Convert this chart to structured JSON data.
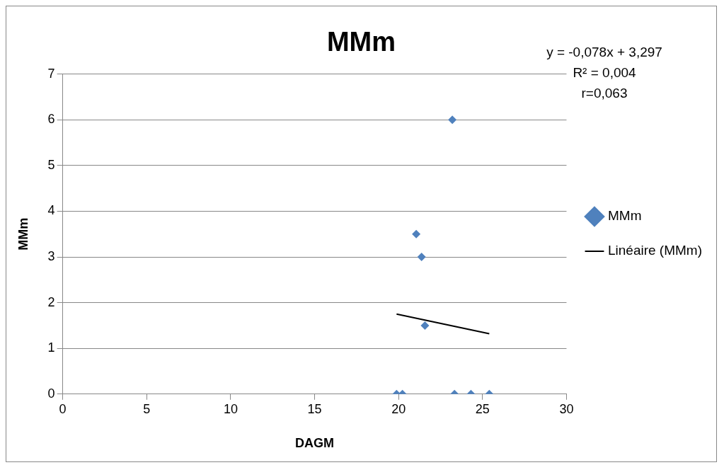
{
  "chart_data": {
    "type": "scatter",
    "title": "MMm",
    "xlabel": "DAGM",
    "ylabel": "MMm",
    "series": [
      {
        "name": "MMm",
        "color": "#4f81bd",
        "x": [
          23.2,
          21.05,
          21.37,
          21.57,
          19.88,
          20.23,
          23.33,
          24.31,
          25.4
        ],
        "values": [
          6,
          3.5,
          3,
          1.5,
          0,
          0,
          0,
          0,
          0
        ]
      },
      {
        "name": "Linéaire (MMm)",
        "type": "line",
        "color": "#000000",
        "marker": "none",
        "x": [
          19.88,
          25.4
        ],
        "values": [
          1.75,
          1.32
        ]
      }
    ],
    "xlim": [
      0,
      30
    ],
    "xticks": [
      0,
      5,
      10,
      15,
      20,
      25,
      30
    ],
    "ylim": [
      0,
      7
    ],
    "yticks": [
      0,
      1,
      2,
      3,
      4,
      5,
      6,
      7
    ],
    "grid": "y",
    "legend": "right",
    "marker": "diamond",
    "annotations": [
      "y = -0,078x + 3,297",
      "R² = 0,004",
      "r=0,063"
    ]
  }
}
